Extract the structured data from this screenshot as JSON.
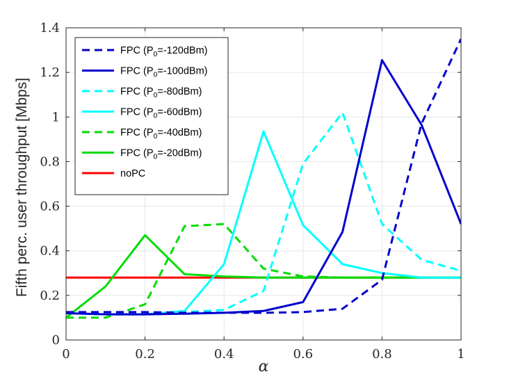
{
  "chart_data": {
    "type": "line",
    "title": "",
    "xlabel": "α",
    "ylabel": "Fifth perc. user throughput [Mbps]",
    "xlim": [
      0,
      1
    ],
    "ylim": [
      0,
      1.4
    ],
    "x_ticks": [
      "0",
      "0.2",
      "0.4",
      "0.6",
      "0.8",
      "1"
    ],
    "y_ticks": [
      "0",
      "0.2",
      "0.4",
      "0.6",
      "0.8",
      "1",
      "1.2",
      "1.4"
    ],
    "grid": true,
    "legend_position": "top-left",
    "x": [
      0,
      0.1,
      0.2,
      0.3,
      0.4,
      0.5,
      0.6,
      0.7,
      0.8,
      0.9,
      1.0
    ],
    "series": [
      {
        "name": "FPC (P0=-120dBm)",
        "legend_main": "FPC (P",
        "legend_sub": "0",
        "legend_tail": "=-120dBm)",
        "color": "#0000cc",
        "dash": "dashed",
        "values": [
          0.125,
          0.125,
          0.125,
          0.122,
          0.122,
          0.122,
          0.125,
          0.14,
          0.27,
          0.97,
          1.35
        ]
      },
      {
        "name": "FPC (P0=-100dBm)",
        "legend_main": "FPC (P",
        "legend_sub": "0",
        "legend_tail": "=-100dBm)",
        "color": "#0000cc",
        "dash": "solid",
        "values": [
          0.12,
          0.115,
          0.115,
          0.118,
          0.122,
          0.13,
          0.17,
          0.485,
          1.255,
          0.965,
          0.52
        ]
      },
      {
        "name": "FPC (P0=-80dBm)",
        "legend_main": "FPC (P",
        "legend_sub": "0",
        "legend_tail": "=-80dBm)",
        "color": "#00ffff",
        "dash": "dashed",
        "values": [
          0.12,
          0.115,
          0.115,
          0.125,
          0.135,
          0.22,
          0.79,
          1.02,
          0.52,
          0.36,
          0.31
        ]
      },
      {
        "name": "FPC (P0=-60dBm)",
        "legend_main": "FPC (P",
        "legend_sub": "0",
        "legend_tail": "=-60dBm)",
        "color": "#00ffff",
        "dash": "solid",
        "values": [
          0.12,
          0.115,
          0.115,
          0.13,
          0.34,
          0.935,
          0.515,
          0.34,
          0.3,
          0.28,
          0.28
        ]
      },
      {
        "name": "FPC (P0=-40dBm)",
        "legend_main": "FPC (P",
        "legend_sub": "0",
        "legend_tail": "=-40dBm)",
        "color": "#00dd00",
        "dash": "dashed",
        "values": [
          0.1,
          0.1,
          0.16,
          0.51,
          0.52,
          0.32,
          0.285,
          0.28,
          0.28,
          0.28,
          0.28
        ]
      },
      {
        "name": "FPC (P0=-20dBm)",
        "legend_main": "FPC (P",
        "legend_sub": "0",
        "legend_tail": "=-20dBm)",
        "color": "#00dd00",
        "dash": "solid",
        "values": [
          0.1,
          0.24,
          0.47,
          0.295,
          0.285,
          0.28,
          0.28,
          0.28,
          0.28,
          0.28,
          0.28
        ]
      },
      {
        "name": "noPC",
        "legend_main": "noPC",
        "legend_sub": "",
        "legend_tail": "",
        "color": "#ff0000",
        "dash": "solid",
        "values": [
          0.28,
          0.28,
          0.28,
          0.28,
          0.28,
          0.28,
          0.28,
          0.28,
          0.28,
          0.28,
          0.28
        ]
      }
    ]
  }
}
